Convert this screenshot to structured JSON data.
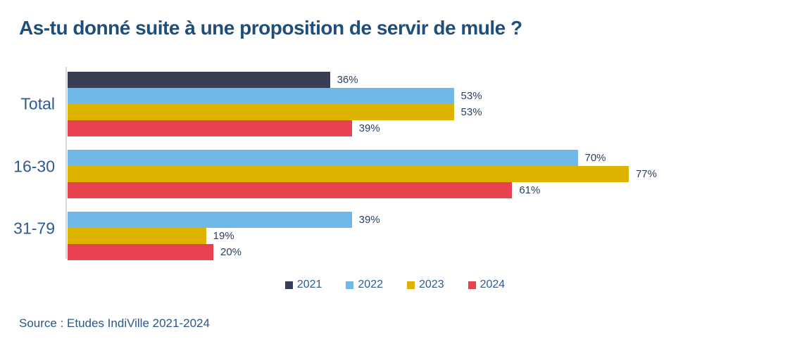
{
  "header": {
    "title": "As-tu donné suite à une proposition de servir de mule ?"
  },
  "footer": {
    "source": "Source : Etudes IndiVille 2021-2024"
  },
  "colors": {
    "series": {
      "2021": "#3A3E55",
      "2022": "#70B8E6",
      "2023": "#DCB400",
      "2024": "#E8414F"
    },
    "title_text": "#1F4E79",
    "category_label_text": "#2E5B8F",
    "value_label_text": "#2A3F63",
    "legend_text": "#2E5B8F",
    "axis_line": "#D9D9D9"
  },
  "legend": {
    "items": [
      {
        "label": "2021",
        "color_key": "2021"
      },
      {
        "label": "2022",
        "color_key": "2022"
      },
      {
        "label": "2023",
        "color_key": "2023"
      },
      {
        "label": "2024",
        "color_key": "2024"
      }
    ]
  },
  "chart_data": {
    "type": "bar",
    "orientation": "horizontal",
    "title": "As-tu donné suite à une proposition de servir de mule ?",
    "unit": "%",
    "categories": [
      "Total",
      "16-30",
      "31-79"
    ],
    "series": [
      {
        "name": "2021",
        "values": [
          36,
          null,
          null
        ]
      },
      {
        "name": "2022",
        "values": [
          53,
          70,
          39
        ]
      },
      {
        "name": "2023",
        "values": [
          53,
          77,
          19
        ]
      },
      {
        "name": "2024",
        "values": [
          39,
          61,
          20
        ]
      }
    ],
    "value_labels": {
      "Total": [
        "36%",
        "53%",
        "53%",
        "39%"
      ],
      "16-30": [
        "70%",
        "77%",
        "61%"
      ],
      "31-79": [
        "39%",
        "19%",
        "20%"
      ]
    },
    "xlim": [
      0,
      100
    ],
    "grid": false,
    "legend_position": "bottom"
  }
}
